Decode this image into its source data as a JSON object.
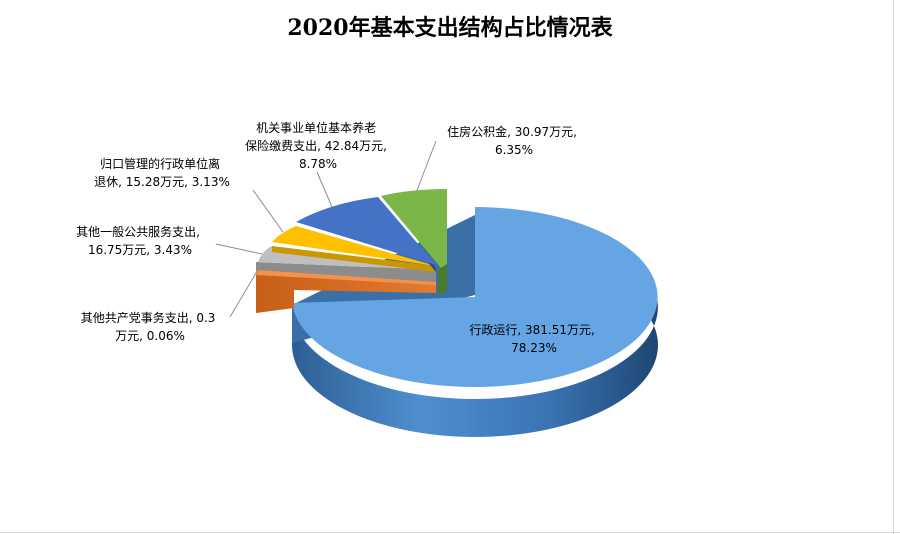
{
  "chart_data": {
    "type": "pie",
    "title": "2020年基本支出结构占比情况表",
    "unit": "万元",
    "slices": [
      {
        "label": "行政运行",
        "value_text": "381.51万元",
        "value": 381.51,
        "percent_text": "78.23%",
        "percent": 78.23,
        "color": "#5b9ee0"
      },
      {
        "label": "住房公积金",
        "value_text": "30.97万元",
        "value": 30.97,
        "percent_text": "6.35%",
        "percent": 6.35,
        "color": "#70ad47"
      },
      {
        "label": "机关事业单位基本养老保险缴费支出",
        "value_text": "42.84万元",
        "value": 42.84,
        "percent_text": "8.78%",
        "percent": 8.78,
        "color": "#4472c4"
      },
      {
        "label": "归口管理的行政单位离退休",
        "value_text": "15.28万元",
        "value": 15.28,
        "percent_text": "3.13%",
        "percent": 3.13,
        "color": "#ffc000"
      },
      {
        "label": "其他一般公共服务支出",
        "value_text": "16.75万元",
        "value": 16.75,
        "percent_text": "3.43%",
        "percent": 3.43,
        "color": "#a5a5a5"
      },
      {
        "label": "其他共产党事务支出",
        "value_text": "0.3万元",
        "value": 0.3,
        "percent_text": "0.06%",
        "percent": 0.06,
        "color": "#ed7d31"
      }
    ]
  },
  "labels": {
    "xingzheng_1": "行政运行, 381.51万元,",
    "xingzheng_2": "78.23%",
    "zhufang_1": "住房公积金, 30.97万元,",
    "zhufang_2": "6.35%",
    "yanglao_1": "机关事业单位基本养老",
    "yanglao_2": "保险缴费支出, 42.84万元,",
    "yanglao_3": "8.78%",
    "tuixiu_1": "归口管理的行政单位离",
    "tuixiu_2": "退休, 15.28万元, 3.13%",
    "yiban_1": "其他一般公共服务支出,",
    "yiban_2": "16.75万元, 3.43%",
    "dangwu_1": "其他共产党事务支出, 0.3",
    "dangwu_2": "万元, 0.06%"
  }
}
